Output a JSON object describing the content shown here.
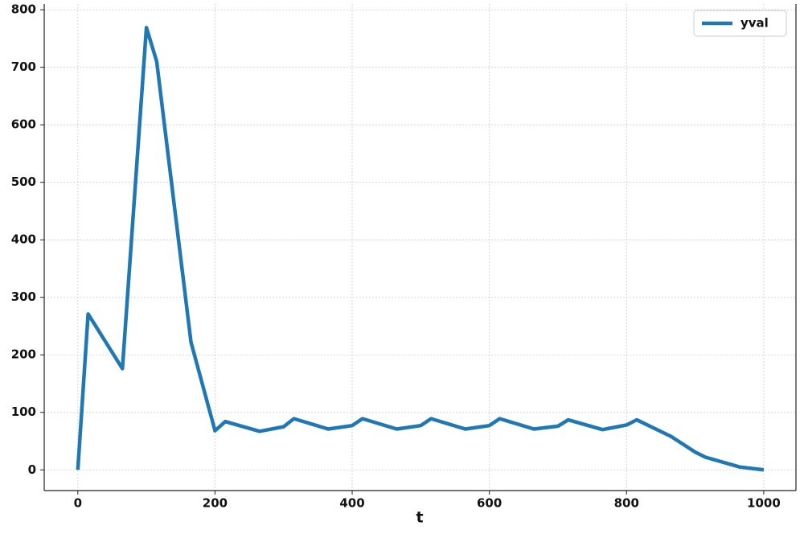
{
  "chart_data": {
    "type": "line",
    "x_label": "t",
    "x": [
      0,
      15,
      65,
      100,
      115,
      165,
      200,
      215,
      265,
      300,
      315,
      365,
      400,
      415,
      465,
      500,
      515,
      565,
      600,
      615,
      665,
      700,
      715,
      765,
      800,
      815,
      865,
      900,
      915,
      965,
      1000
    ],
    "series": [
      {
        "name": "yval",
        "color": "#1f77b4",
        "values": [
          0,
          271,
          176,
          769,
          710,
          222,
          68,
          84,
          67,
          75,
          89,
          71,
          77,
          89,
          71,
          77,
          89,
          71,
          77,
          89,
          71,
          76,
          87,
          70,
          78,
          87,
          58,
          31,
          22,
          5,
          0
        ]
      }
    ],
    "xlim": [
      -49,
      1047
    ],
    "ylim": [
      -36,
      810
    ],
    "xticks": [
      0,
      200,
      400,
      600,
      800,
      1000
    ],
    "yticks": [
      0,
      100,
      200,
      300,
      400,
      500,
      600,
      700,
      800
    ],
    "grid": true,
    "legend": "upper right"
  }
}
